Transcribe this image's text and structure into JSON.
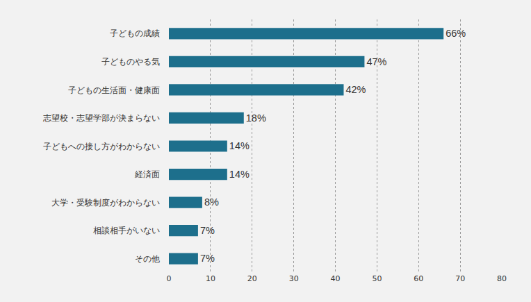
{
  "chart_data": {
    "type": "bar",
    "orientation": "horizontal",
    "categories": [
      "子どもの成績",
      "子どものやる気",
      "子どもの生活面・健康面",
      "志望校・志望学部が決まらない",
      "子どもへの接し方がわからない",
      "経済面",
      "大学・受験制度がわからない",
      "相談相手がいない",
      "その他"
    ],
    "values": [
      66,
      47,
      42,
      18,
      14,
      14,
      8,
      7,
      7
    ],
    "value_labels": [
      "66%",
      "47%",
      "42%",
      "18%",
      "14%",
      "14%",
      "8%",
      "7%",
      "7%"
    ],
    "color": "#1d6f8c",
    "xlim": [
      0,
      80
    ],
    "xticks": [
      0,
      10,
      20,
      30,
      40,
      50,
      60,
      70,
      80
    ],
    "grid": true,
    "data_labels": true
  }
}
